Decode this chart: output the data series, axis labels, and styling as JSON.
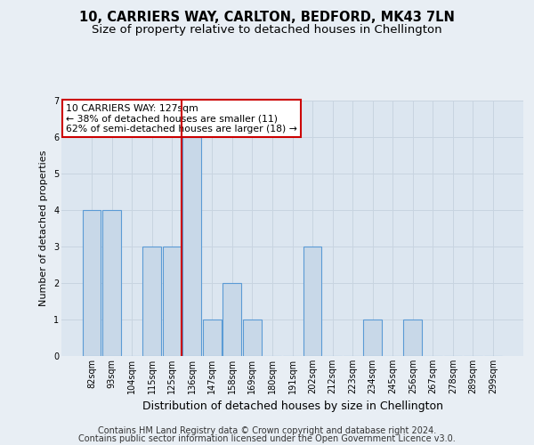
{
  "title": "10, CARRIERS WAY, CARLTON, BEDFORD, MK43 7LN",
  "subtitle": "Size of property relative to detached houses in Chellington",
  "xlabel": "Distribution of detached houses by size in Chellington",
  "ylabel": "Number of detached properties",
  "categories": [
    "82sqm",
    "93sqm",
    "104sqm",
    "115sqm",
    "125sqm",
    "136sqm",
    "147sqm",
    "158sqm",
    "169sqm",
    "180sqm",
    "191sqm",
    "202sqm",
    "212sqm",
    "223sqm",
    "234sqm",
    "245sqm",
    "256sqm",
    "267sqm",
    "278sqm",
    "289sqm",
    "299sqm"
  ],
  "values": [
    4,
    4,
    0,
    3,
    3,
    6,
    1,
    2,
    1,
    0,
    0,
    3,
    0,
    0,
    1,
    0,
    1,
    0,
    0,
    0,
    0
  ],
  "bar_color": "#c8d8e8",
  "bar_edge_color": "#5b9bd5",
  "property_line_x": 4.5,
  "annotation_text": "10 CARRIERS WAY: 127sqm\n← 38% of detached houses are smaller (11)\n62% of semi-detached houses are larger (18) →",
  "annotation_box_facecolor": "#ffffff",
  "annotation_box_edgecolor": "#cc0000",
  "ylim": [
    0,
    7
  ],
  "yticks": [
    0,
    1,
    2,
    3,
    4,
    5,
    6,
    7
  ],
  "grid_color": "#c8d4e0",
  "bg_color": "#e8eef4",
  "plot_bg_color": "#dce6f0",
  "footer_line1": "Contains HM Land Registry data © Crown copyright and database right 2024.",
  "footer_line2": "Contains public sector information licensed under the Open Government Licence v3.0.",
  "title_fontsize": 10.5,
  "subtitle_fontsize": 9.5,
  "annotation_fontsize": 7.8,
  "tick_fontsize": 7,
  "ylabel_fontsize": 8,
  "xlabel_fontsize": 9,
  "footer_fontsize": 7
}
